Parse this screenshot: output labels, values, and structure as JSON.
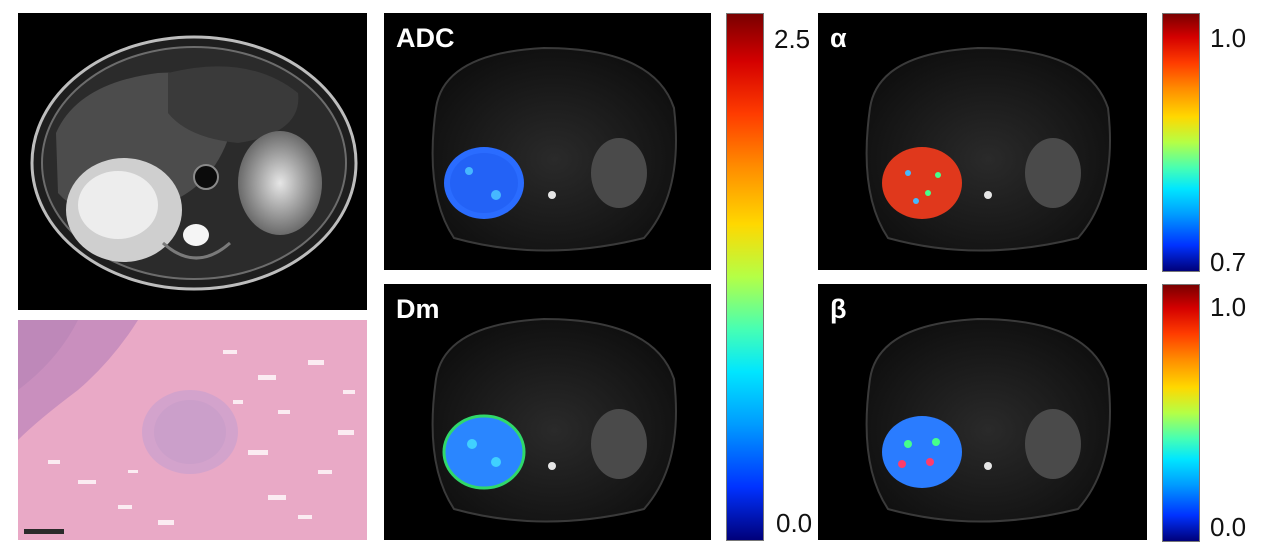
{
  "maps": {
    "adc": {
      "label": "ADC"
    },
    "dm": {
      "label": "Dm"
    },
    "alpha": {
      "label": "α"
    },
    "beta": {
      "label": "β"
    }
  },
  "colorbars": {
    "diffusion": {
      "max": "2.5",
      "min": "0.0"
    },
    "alpha": {
      "max": "1.0",
      "min": "0.7"
    },
    "beta": {
      "max": "1.0",
      "min": "0.0"
    }
  },
  "colors": {
    "tumor_blue": "#2a6cff",
    "tumor_red": "#e0381c",
    "histology_pink": "#e7a7c4"
  }
}
